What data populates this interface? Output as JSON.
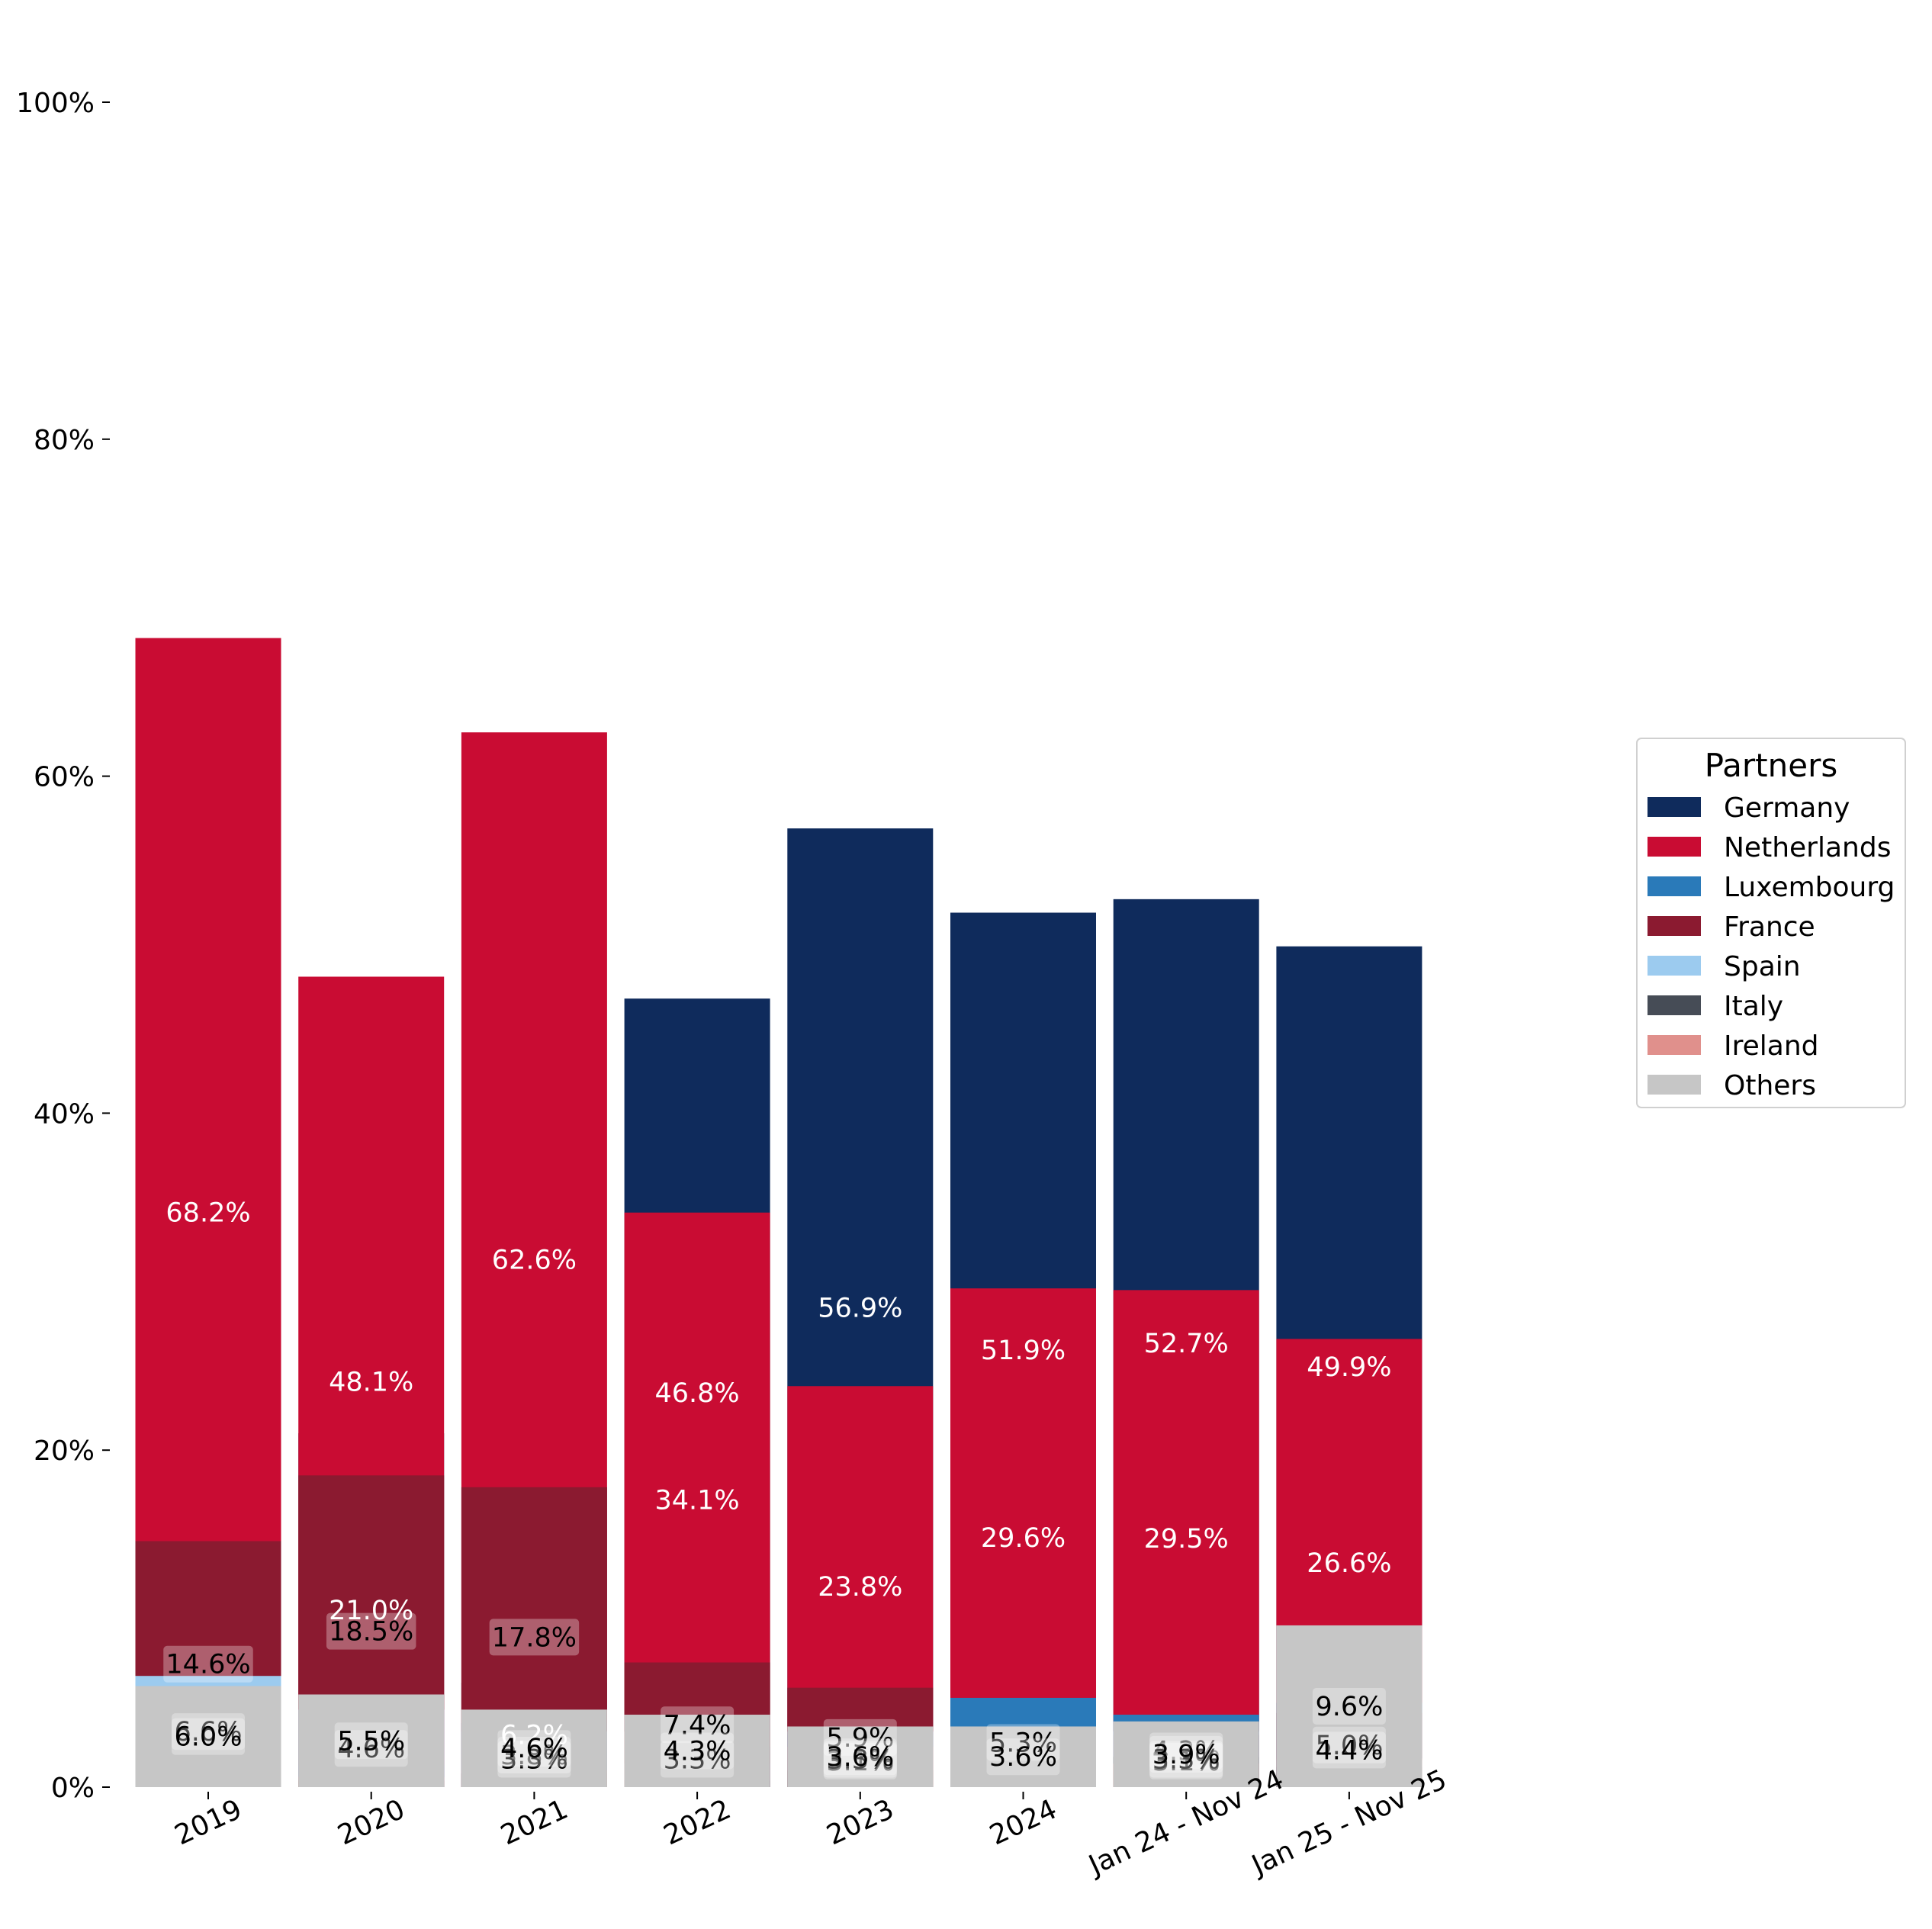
{
  "chart_data": {
    "type": "bar",
    "stacked": true,
    "categories": [
      "2019",
      "2020",
      "2021",
      "2022",
      "2023",
      "2024",
      "Jan 24 - Nov 24",
      "Jan 25 - Nov 25"
    ],
    "ylim": [
      0,
      100
    ],
    "yticks": [
      "0%",
      "20%",
      "40%",
      "60%",
      "80%",
      "100%"
    ],
    "grid": false,
    "legend": {
      "title": "Partners",
      "placement": "right"
    },
    "series": [
      {
        "name": "Germany",
        "color": "#0f2b5c",
        "values": [
          1.6,
          21.0,
          6.2,
          46.8,
          56.9,
          51.9,
          52.7,
          49.9
        ],
        "labels": [
          "",
          "21.0%",
          "6.2%",
          "46.8%",
          "56.9%",
          "51.9%",
          "52.7%",
          "49.9%"
        ]
      },
      {
        "name": "Netherlands",
        "color": "#c90c33",
        "values": [
          68.2,
          48.1,
          62.6,
          34.1,
          23.8,
          29.6,
          29.5,
          26.6
        ],
        "labels": [
          "68.2%",
          "48.1%",
          "62.6%",
          "34.1%",
          "23.8%",
          "29.6%",
          "29.5%",
          "26.6%"
        ]
      },
      {
        "name": "Luxembourg",
        "color": "#2a7ab9",
        "values": [
          1.2,
          1.3,
          3.8,
          2.4,
          3.1,
          5.3,
          4.3,
          5.0
        ],
        "labels": [
          "",
          "",
          "3.8%",
          "",
          "3.1%",
          "5.3%",
          "4.3%",
          "5.0%"
        ]
      },
      {
        "name": "France",
        "color": "#8b1a30",
        "values": [
          14.6,
          18.5,
          17.8,
          7.4,
          5.9,
          3.0,
          3.1,
          4.4
        ],
        "labels": [
          "14.6%",
          "18.5%",
          "17.8%",
          "7.4%",
          "5.9%",
          "",
          "3.1%",
          "4.4%"
        ]
      },
      {
        "name": "Spain",
        "color": "#9ccbef",
        "values": [
          6.6,
          4.6,
          3.3,
          1.4,
          3.3,
          3.0,
          3.3,
          1.6
        ],
        "labels": [
          "6.6%",
          "4.6%",
          "3.3%",
          "",
          "3.3%",
          "",
          "3.3%",
          ""
        ]
      },
      {
        "name": "Italy",
        "color": "#464c56",
        "values": [
          0.5,
          0.4,
          0.8,
          0.4,
          1.0,
          1.9,
          1.8,
          1.2
        ],
        "labels": [
          "",
          "",
          "",
          "",
          "",
          "",
          "",
          ""
        ]
      },
      {
        "name": "Ireland",
        "color": "#e0908c",
        "values": [
          1.3,
          0.6,
          1.0,
          3.3,
          2.4,
          1.7,
          1.4,
          1.7
        ],
        "labels": [
          "",
          "",
          "",
          "3.3%",
          "",
          "",
          "",
          ""
        ]
      },
      {
        "name": "Others",
        "color": "#c6c6c6",
        "values": [
          6.0,
          5.5,
          4.6,
          4.3,
          3.6,
          3.6,
          3.9,
          9.6
        ],
        "labels": [
          "6.0%",
          "5.5%",
          "4.6%",
          "4.3%",
          "3.6%",
          "3.6%",
          "3.9%",
          "9.6%"
        ]
      }
    ],
    "label_styles": {
      "Germany": "light",
      "Netherlands": "light",
      "Luxembourg": "boxed",
      "France": "boxed",
      "Spain": "boxed",
      "Italy": "boxed",
      "Ireland": "boxed",
      "Others": "boxed"
    }
  }
}
